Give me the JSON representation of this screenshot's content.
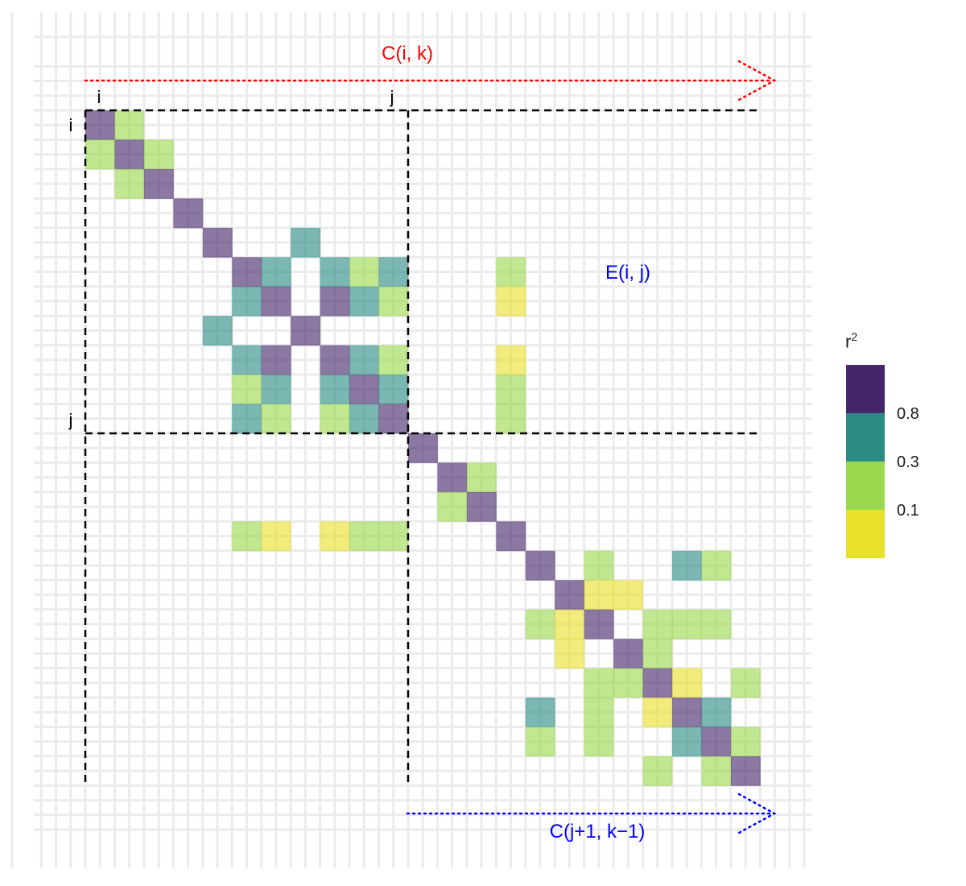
{
  "labels": {
    "i_top": "i",
    "j_top": "j",
    "i_left": "i",
    "j_left": "j",
    "c_ik": "C(i, k)",
    "e_ij": "E(i, j)",
    "c_j1k1": "C(j+1, k−1)"
  },
  "legend": {
    "title": "r",
    "title_superscript": "2",
    "ticks": [
      "0.8",
      "0.3",
      "0.1"
    ],
    "colors": [
      "#46266a",
      "#2a8a84",
      "#9bd84e",
      "#e8e12a"
    ]
  },
  "colors": {
    "c_ik": "#ff0000",
    "e_ij": "#0000ff",
    "c_j1k1": "#0000ff",
    "dashed": "#000000",
    "grid": "#ebebeb"
  },
  "heatmap": {
    "description_levels": [
      "v",
      "t",
      "g",
      "y"
    ],
    "level_colors": {
      "v": "#46266a",
      "t": "#2a8a84",
      "g": "#9bd84e",
      "y": "#e8e12a"
    },
    "cells": [
      [
        0,
        0,
        "v"
      ],
      [
        0,
        1,
        "g"
      ],
      [
        1,
        0,
        "g"
      ],
      [
        1,
        1,
        "v"
      ],
      [
        1,
        2,
        "g"
      ],
      [
        2,
        1,
        "g"
      ],
      [
        2,
        2,
        "v"
      ],
      [
        3,
        3,
        "v"
      ],
      [
        4,
        4,
        "v"
      ],
      [
        4,
        7,
        "t"
      ],
      [
        5,
        5,
        "v"
      ],
      [
        5,
        6,
        "t"
      ],
      [
        5,
        8,
        "t"
      ],
      [
        5,
        9,
        "g"
      ],
      [
        5,
        10,
        "t"
      ],
      [
        5,
        14,
        "g"
      ],
      [
        6,
        5,
        "t"
      ],
      [
        6,
        6,
        "v"
      ],
      [
        6,
        8,
        "v"
      ],
      [
        6,
        9,
        "t"
      ],
      [
        6,
        10,
        "g"
      ],
      [
        6,
        14,
        "y"
      ],
      [
        7,
        4,
        "t"
      ],
      [
        7,
        7,
        "v"
      ],
      [
        8,
        5,
        "t"
      ],
      [
        8,
        6,
        "v"
      ],
      [
        8,
        8,
        "v"
      ],
      [
        8,
        9,
        "t"
      ],
      [
        8,
        10,
        "g"
      ],
      [
        8,
        14,
        "y"
      ],
      [
        9,
        5,
        "g"
      ],
      [
        9,
        6,
        "t"
      ],
      [
        9,
        8,
        "t"
      ],
      [
        9,
        9,
        "v"
      ],
      [
        9,
        10,
        "t"
      ],
      [
        9,
        14,
        "g"
      ],
      [
        10,
        5,
        "t"
      ],
      [
        10,
        6,
        "g"
      ],
      [
        10,
        8,
        "g"
      ],
      [
        10,
        9,
        "t"
      ],
      [
        10,
        10,
        "v"
      ],
      [
        10,
        14,
        "g"
      ],
      [
        11,
        11,
        "v"
      ],
      [
        12,
        12,
        "v"
      ],
      [
        12,
        13,
        "g"
      ],
      [
        13,
        12,
        "g"
      ],
      [
        13,
        13,
        "v"
      ],
      [
        14,
        5,
        "g"
      ],
      [
        14,
        6,
        "y"
      ],
      [
        14,
        8,
        "y"
      ],
      [
        14,
        9,
        "g"
      ],
      [
        14,
        10,
        "g"
      ],
      [
        14,
        14,
        "v"
      ],
      [
        15,
        15,
        "v"
      ],
      [
        15,
        17,
        "g"
      ],
      [
        15,
        20,
        "t"
      ],
      [
        15,
        21,
        "g"
      ],
      [
        16,
        16,
        "v"
      ],
      [
        16,
        17,
        "y"
      ],
      [
        16,
        18,
        "y"
      ],
      [
        17,
        15,
        "g"
      ],
      [
        17,
        16,
        "y"
      ],
      [
        17,
        17,
        "v"
      ],
      [
        17,
        19,
        "g"
      ],
      [
        17,
        20,
        "g"
      ],
      [
        17,
        21,
        "g"
      ],
      [
        18,
        16,
        "y"
      ],
      [
        18,
        18,
        "v"
      ],
      [
        18,
        19,
        "g"
      ],
      [
        19,
        17,
        "g"
      ],
      [
        19,
        18,
        "g"
      ],
      [
        19,
        19,
        "v"
      ],
      [
        19,
        20,
        "y"
      ],
      [
        19,
        22,
        "g"
      ],
      [
        20,
        15,
        "t"
      ],
      [
        20,
        17,
        "g"
      ],
      [
        20,
        19,
        "y"
      ],
      [
        20,
        20,
        "v"
      ],
      [
        20,
        21,
        "t"
      ],
      [
        21,
        15,
        "g"
      ],
      [
        21,
        17,
        "g"
      ],
      [
        21,
        20,
        "t"
      ],
      [
        21,
        21,
        "v"
      ],
      [
        21,
        22,
        "g"
      ],
      [
        22,
        19,
        "g"
      ],
      [
        22,
        21,
        "g"
      ],
      [
        22,
        22,
        "v"
      ]
    ]
  }
}
